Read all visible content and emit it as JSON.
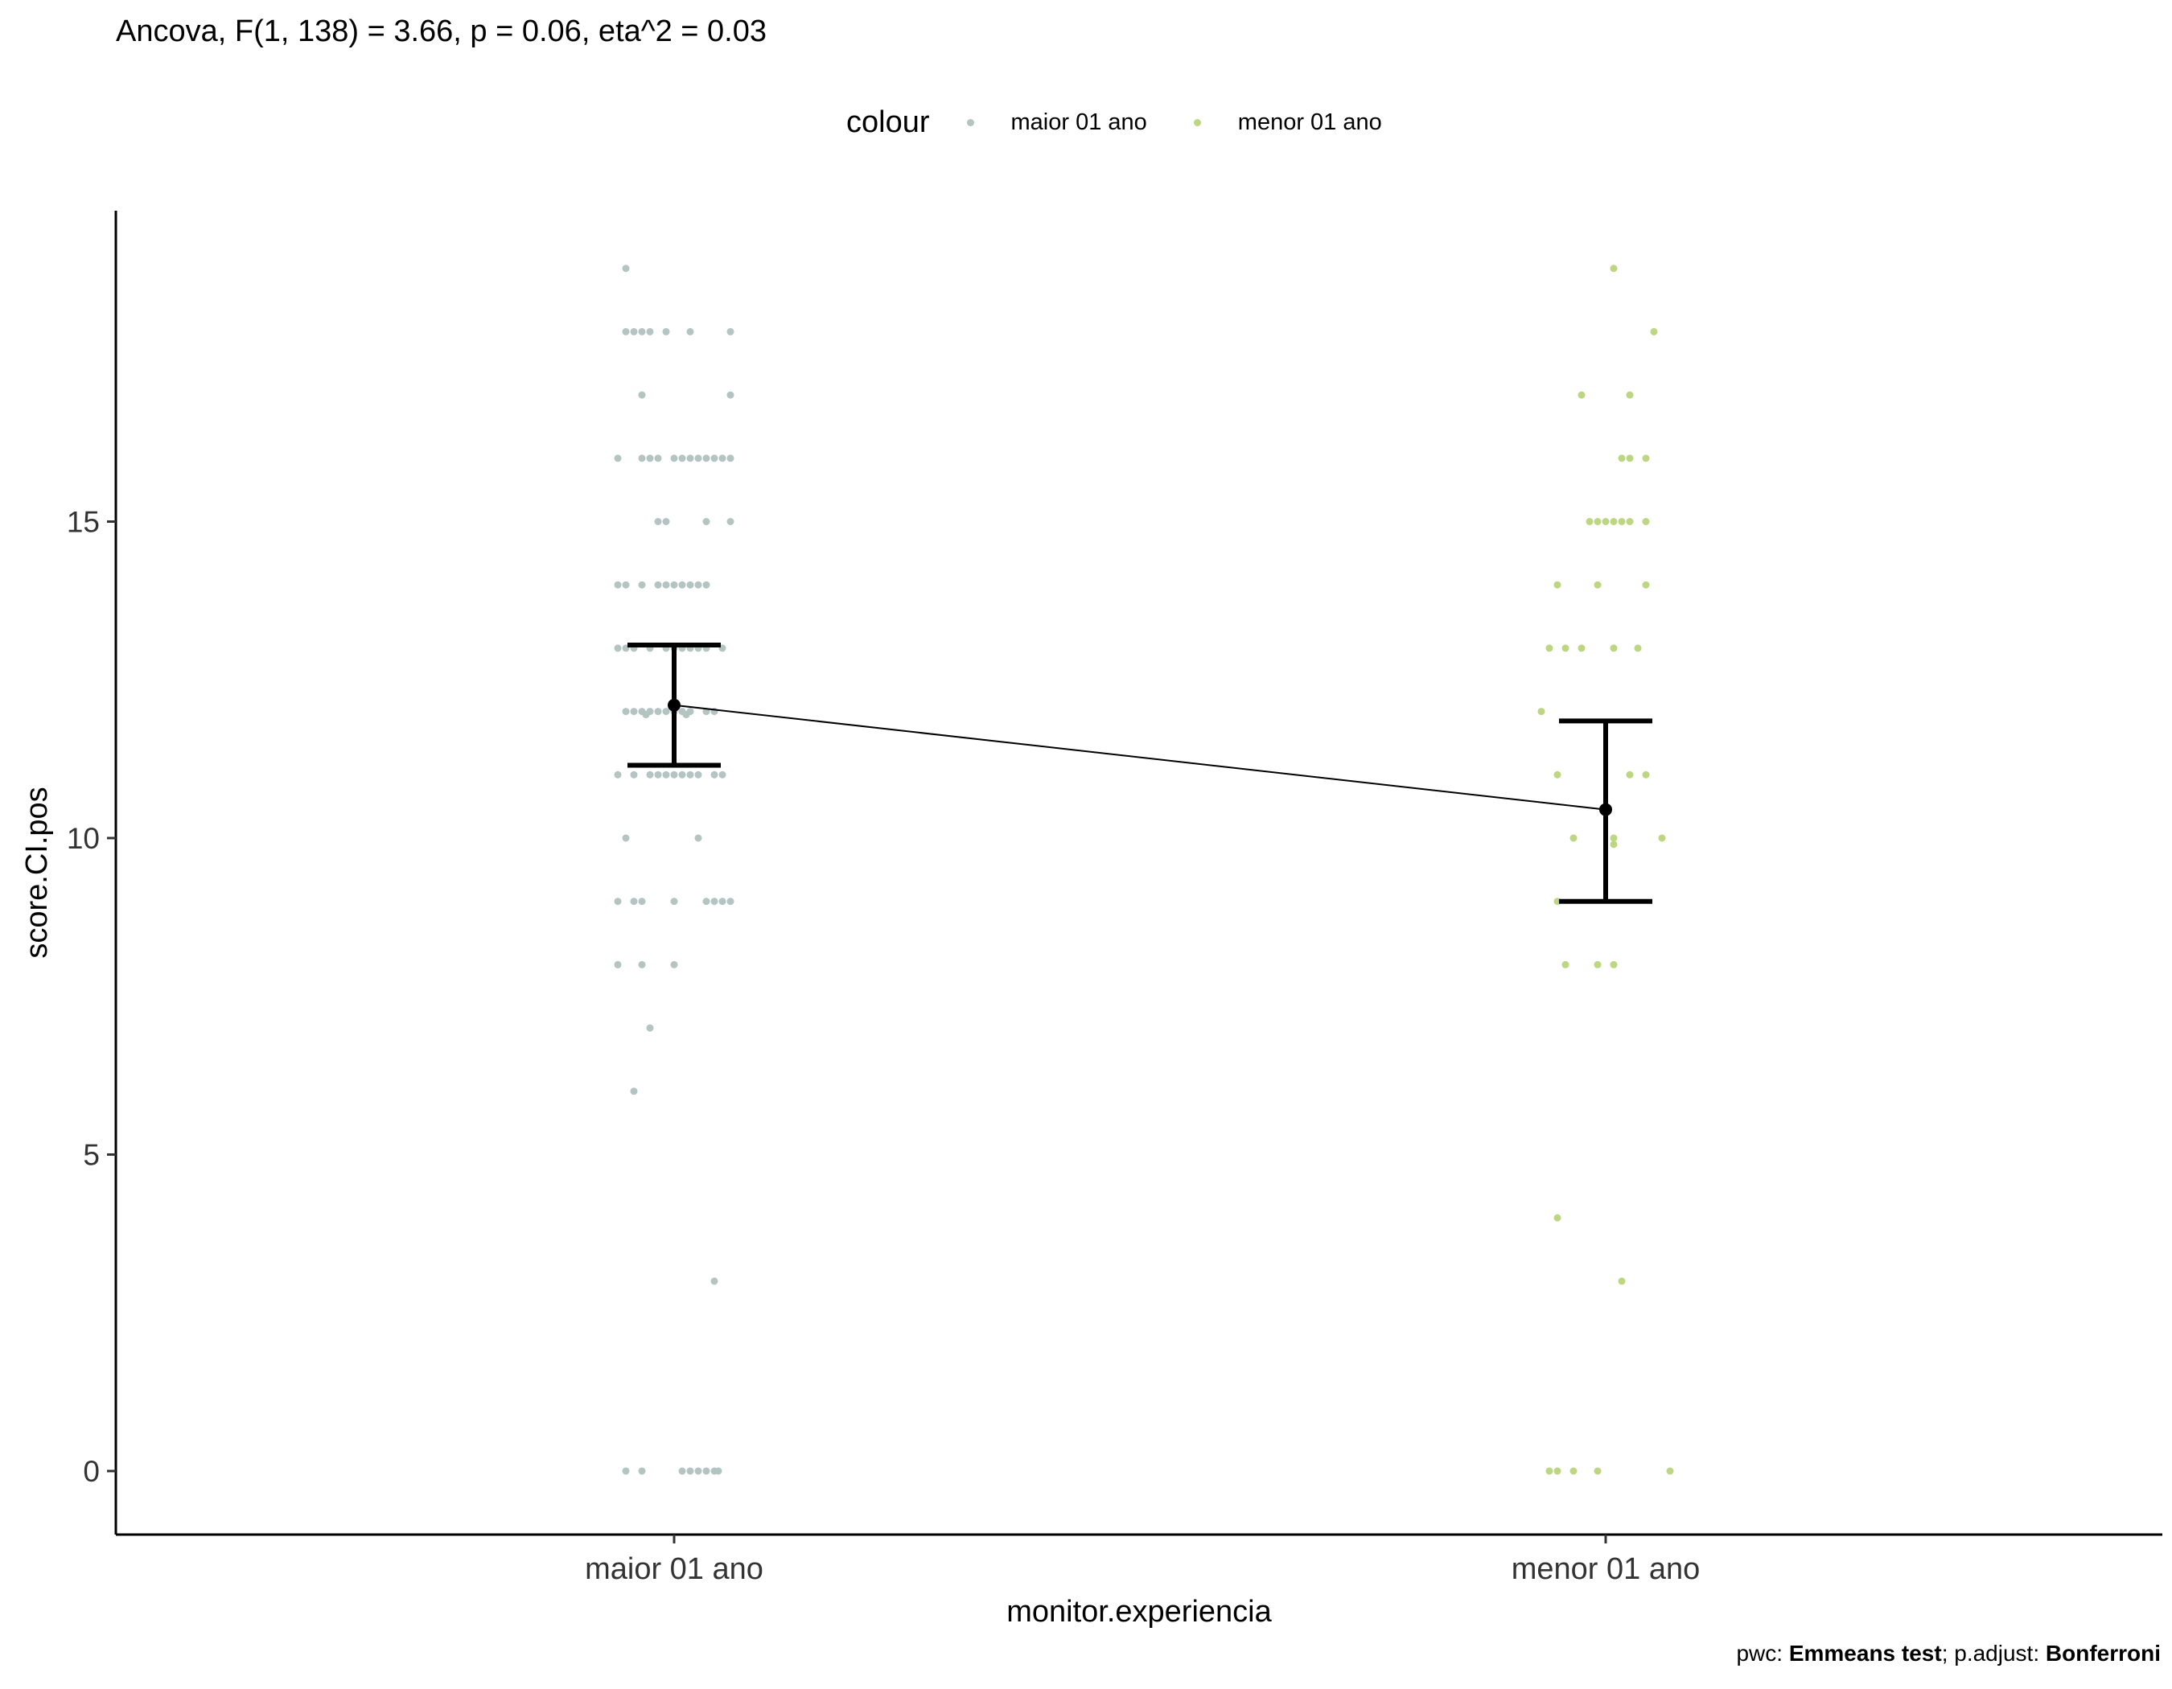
{
  "subtitle": "Ancova, F(1, 138) = 3.66, p = 0.06, eta^2 = 0.03",
  "caption": {
    "pwc_label": "pwc: ",
    "pwc_value": "Emmeans test",
    "adjust_label": "; p.adjust: ",
    "adjust_value": "Bonferroni"
  },
  "legend": {
    "title": "colour",
    "items": [
      {
        "label": "maior 01 ano",
        "color": "#b3c4c1"
      },
      {
        "label": "menor 01 ano",
        "color": "#bcd681"
      }
    ]
  },
  "chart_data": {
    "type": "scatter",
    "xlabel": "monitor.experiencia",
    "ylabel": "score.CI.pos",
    "categories": [
      "maior 01 ano",
      "menor 01 ano"
    ],
    "ylim": [
      -1,
      19.9
    ],
    "yticks": [
      0,
      5,
      10,
      15
    ],
    "grid": false,
    "legend_position": "top",
    "series": [
      {
        "name": "maior 01 ano",
        "color": "#b3c4c1",
        "points": [
          [
            -0.06,
            19
          ],
          [
            -0.06,
            18
          ],
          [
            -0.04,
            18
          ],
          [
            -0.03,
            18
          ],
          [
            -0.05,
            18
          ],
          [
            0.02,
            18
          ],
          [
            0.07,
            18
          ],
          [
            -0.01,
            18
          ],
          [
            -0.04,
            17
          ],
          [
            0.07,
            17
          ],
          [
            -0.07,
            16
          ],
          [
            -0.04,
            16
          ],
          [
            -0.02,
            16
          ],
          [
            0.0,
            16
          ],
          [
            0.02,
            16
          ],
          [
            0.03,
            16
          ],
          [
            0.04,
            16
          ],
          [
            0.05,
            16
          ],
          [
            0.06,
            16
          ],
          [
            0.07,
            16
          ],
          [
            -0.03,
            16
          ],
          [
            0.01,
            16
          ],
          [
            -0.02,
            15
          ],
          [
            -0.01,
            15
          ],
          [
            0.04,
            15
          ],
          [
            0.07,
            15
          ],
          [
            -0.07,
            14
          ],
          [
            -0.06,
            14
          ],
          [
            -0.04,
            14
          ],
          [
            -0.01,
            14
          ],
          [
            0.0,
            14
          ],
          [
            0.01,
            14
          ],
          [
            0.02,
            14
          ],
          [
            0.03,
            14
          ],
          [
            0.04,
            14
          ],
          [
            -0.02,
            14
          ],
          [
            -0.07,
            13
          ],
          [
            -0.06,
            13
          ],
          [
            -0.05,
            13
          ],
          [
            -0.03,
            13
          ],
          [
            -0.01,
            13
          ],
          [
            0.0,
            13
          ],
          [
            0.02,
            13
          ],
          [
            0.03,
            13
          ],
          [
            0.04,
            13
          ],
          [
            0.06,
            13
          ],
          [
            0.01,
            13
          ],
          [
            -0.06,
            12
          ],
          [
            -0.05,
            12
          ],
          [
            -0.04,
            12
          ],
          [
            -0.03,
            12
          ],
          [
            -0.02,
            12
          ],
          [
            -0.01,
            12
          ],
          [
            0.0,
            12
          ],
          [
            0.01,
            12
          ],
          [
            0.02,
            12
          ],
          [
            0.04,
            12
          ],
          [
            0.05,
            12
          ],
          [
            -0.035,
            11.95
          ],
          [
            0.015,
            11.95
          ],
          [
            -0.07,
            11
          ],
          [
            -0.05,
            11
          ],
          [
            -0.03,
            11
          ],
          [
            -0.01,
            11
          ],
          [
            0.0,
            11
          ],
          [
            0.02,
            11
          ],
          [
            0.03,
            11
          ],
          [
            0.05,
            11
          ],
          [
            0.06,
            11
          ],
          [
            -0.02,
            11
          ],
          [
            0.01,
            11
          ],
          [
            -0.06,
            10
          ],
          [
            0.03,
            10
          ],
          [
            -0.07,
            9
          ],
          [
            -0.05,
            9
          ],
          [
            -0.04,
            9
          ],
          [
            0.0,
            9
          ],
          [
            0.04,
            9
          ],
          [
            0.05,
            9
          ],
          [
            0.06,
            9
          ],
          [
            0.07,
            9
          ],
          [
            -0.07,
            8
          ],
          [
            -0.04,
            8
          ],
          [
            0.0,
            8
          ],
          [
            -0.03,
            7
          ],
          [
            -0.05,
            6
          ],
          [
            0.05,
            3
          ],
          [
            -0.06,
            0
          ],
          [
            -0.04,
            0
          ],
          [
            0.01,
            0
          ],
          [
            0.02,
            0
          ],
          [
            0.03,
            0
          ],
          [
            0.04,
            0
          ],
          [
            0.05,
            0
          ],
          [
            0.055,
            0
          ]
        ]
      },
      {
        "name": "menor 01 ano",
        "color": "#bcd681",
        "points": [
          [
            0.01,
            19
          ],
          [
            0.06,
            18
          ],
          [
            -0.03,
            17
          ],
          [
            0.03,
            17
          ],
          [
            0.02,
            16
          ],
          [
            0.03,
            16
          ],
          [
            0.05,
            16
          ],
          [
            -0.02,
            15
          ],
          [
            0.0,
            15
          ],
          [
            0.01,
            15
          ],
          [
            0.02,
            15
          ],
          [
            0.03,
            15
          ],
          [
            0.05,
            15
          ],
          [
            -0.01,
            15
          ],
          [
            -0.06,
            14
          ],
          [
            -0.01,
            14
          ],
          [
            0.05,
            14
          ],
          [
            -0.07,
            13
          ],
          [
            -0.05,
            13
          ],
          [
            -0.03,
            13
          ],
          [
            0.01,
            13
          ],
          [
            0.04,
            13
          ],
          [
            -0.08,
            12
          ],
          [
            -0.06,
            11
          ],
          [
            0.03,
            11
          ],
          [
            0.05,
            11
          ],
          [
            -0.04,
            10
          ],
          [
            0.01,
            10
          ],
          [
            0.07,
            10
          ],
          [
            0.01,
            9.9
          ],
          [
            -0.06,
            9
          ],
          [
            -0.05,
            8
          ],
          [
            -0.01,
            8
          ],
          [
            0.01,
            8
          ],
          [
            -0.06,
            4
          ],
          [
            0.02,
            3
          ],
          [
            -0.07,
            0
          ],
          [
            -0.06,
            0
          ],
          [
            -0.04,
            0
          ],
          [
            -0.01,
            0
          ],
          [
            0.08,
            0
          ]
        ]
      },
      {
        "name": "",
        "kind": "estimated-marginal-means",
        "color": "#000000",
        "means": [
          12.1,
          10.45
        ],
        "ci_low": [
          11.15,
          9.0
        ],
        "ci_high": [
          13.05,
          11.85
        ]
      }
    ]
  }
}
